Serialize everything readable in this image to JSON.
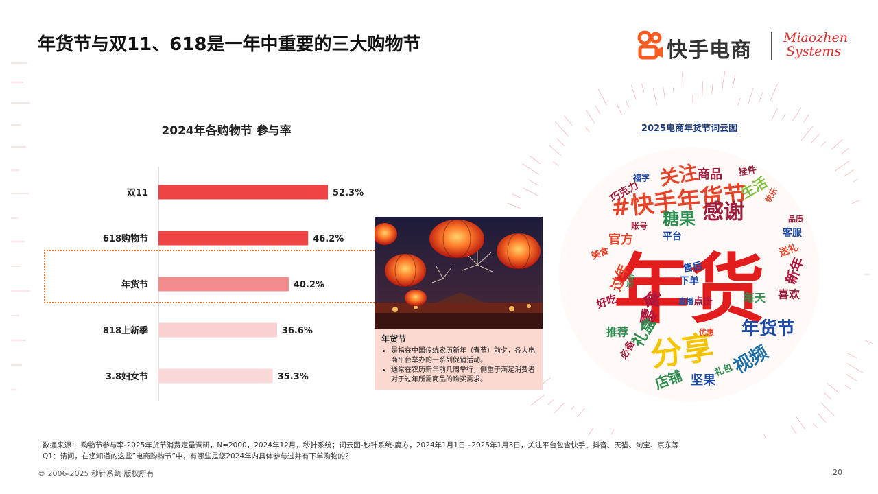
{
  "page": {
    "title": "年货节与双11、618是一年中重要的三大购物节",
    "page_number": "20",
    "copyright": "© 2006-2025 秒针系统 版权所有"
  },
  "logos": {
    "kuaishou": "快手电商",
    "miaozhen_line1": "Miaozhen",
    "miaozhen_line2": "Systems"
  },
  "chart_data": {
    "type": "bar",
    "orientation": "horizontal",
    "title": "2024年各购物节 参与率",
    "categories": [
      "双11",
      "618购物节",
      "年货节",
      "818上新季",
      "3.8妇女节"
    ],
    "values": [
      52.3,
      46.2,
      40.2,
      36.6,
      35.3
    ],
    "value_labels": [
      "52.3%",
      "46.2%",
      "40.2%",
      "36.6%",
      "35.3%"
    ],
    "colors": [
      "#ef4444",
      "#ef4444",
      "#f28b8b",
      "#fbd0d0",
      "#fbd8d8"
    ],
    "unit": "%",
    "highlighted_category": "年货节",
    "xlim": [
      0,
      100
    ],
    "grid": false
  },
  "info": {
    "title": "年货节",
    "bullets": [
      "是指在中国传统农历新年（春节）前夕，各大电商平台举办的一系列促销活动。",
      "通常在农历新年前几周举行，侧重于满足消费者对于过年所需商品的购买需求。"
    ]
  },
  "wordcloud": {
    "title": "2025电商年货节词云图",
    "words": [
      "年货",
      "分享",
      "#快手年货节",
      "关注",
      "感谢",
      "糖果",
      "零食",
      "视频",
      "年货节",
      "礼盒",
      "过年",
      "店铺",
      "新年",
      "喜欢",
      "生活",
      "商品",
      "推荐",
      "官方",
      "平台",
      "好吃",
      "坚果",
      "巧克力",
      "美食",
      "客服",
      "送礼",
      "每天",
      "必备",
      "点击",
      "售后",
      "下单",
      "账号",
      "福字",
      "挂件",
      "礼包",
      "快乐",
      "直播",
      "优惠",
      "活动",
      "品质",
      "福利"
    ]
  },
  "source": {
    "line1": "数据来源：  购物节参与率-2025年货节消费定量调研，N=2000，2024年12月，秒针系统；词云图-秒针系统-魔方，2024年1月1日~2025年1月3日，关注平台包含快手、抖音、天猫、淘宝、京东等",
    "line2": "Q1：请问，在您知道的这些”电商购物节“中，有哪些是您2024年内具体参与过并有下单购物的？"
  }
}
